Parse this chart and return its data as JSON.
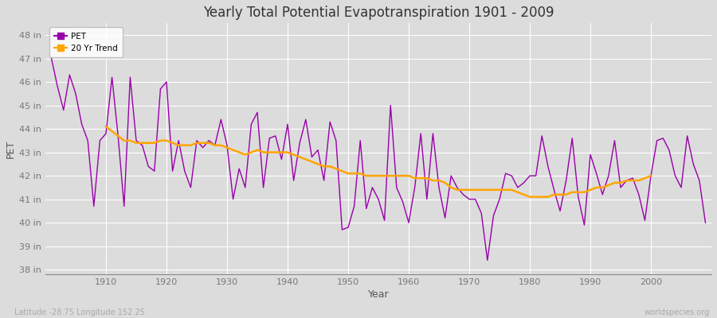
{
  "title": "Yearly Total Potential Evapotranspiration 1901 - 2009",
  "xlabel": "Year",
  "ylabel": "PET",
  "pet_color": "#9900AA",
  "trend_color": "#FFA500",
  "fig_bg_color": "#DCDCDC",
  "plot_bg_color": "#DCDCDC",
  "grid_color": "#FFFFFF",
  "ylim": [
    37.8,
    48.5
  ],
  "yticks": [
    38,
    39,
    40,
    41,
    42,
    43,
    44,
    45,
    46,
    47,
    48
  ],
  "ytick_labels": [
    "38 in",
    "39 in",
    "40 in",
    "41 in",
    "42 in",
    "43 in",
    "44 in",
    "45 in",
    "46 in",
    "47 in",
    "48 in"
  ],
  "xticks": [
    1910,
    1920,
    1930,
    1940,
    1950,
    1960,
    1970,
    1980,
    1990,
    2000
  ],
  "xlim": [
    1900,
    2010
  ],
  "footnote_left": "Latitude -28.75 Longitude 152.25",
  "footnote_right": "worldspecies.org",
  "legend_labels": [
    "PET",
    "20 Yr Trend"
  ],
  "years": [
    1901,
    1902,
    1903,
    1904,
    1905,
    1906,
    1907,
    1908,
    1909,
    1910,
    1911,
    1912,
    1913,
    1914,
    1915,
    1916,
    1917,
    1918,
    1919,
    1920,
    1921,
    1922,
    1923,
    1924,
    1925,
    1926,
    1927,
    1928,
    1929,
    1930,
    1931,
    1932,
    1933,
    1934,
    1935,
    1936,
    1937,
    1938,
    1939,
    1940,
    1941,
    1942,
    1943,
    1944,
    1945,
    1946,
    1947,
    1948,
    1949,
    1950,
    1951,
    1952,
    1953,
    1954,
    1955,
    1956,
    1957,
    1958,
    1959,
    1960,
    1961,
    1962,
    1963,
    1964,
    1965,
    1966,
    1967,
    1968,
    1969,
    1970,
    1971,
    1972,
    1973,
    1974,
    1975,
    1976,
    1977,
    1978,
    1979,
    1980,
    1981,
    1982,
    1983,
    1984,
    1985,
    1986,
    1987,
    1988,
    1989,
    1990,
    1991,
    1992,
    1993,
    1994,
    1995,
    1996,
    1997,
    1998,
    1999,
    2000,
    2001,
    2002,
    2003,
    2004,
    2005,
    2006,
    2007,
    2008,
    2009
  ],
  "pet_values": [
    47.0,
    45.8,
    44.8,
    46.3,
    45.5,
    44.2,
    43.5,
    40.7,
    43.5,
    43.8,
    46.2,
    43.7,
    40.7,
    46.2,
    43.5,
    43.3,
    42.4,
    42.2,
    45.7,
    46.0,
    42.2,
    43.5,
    42.2,
    41.5,
    43.5,
    43.2,
    43.5,
    43.3,
    44.4,
    43.3,
    41.0,
    42.3,
    41.5,
    44.2,
    44.7,
    41.5,
    43.6,
    43.7,
    42.7,
    44.2,
    41.8,
    43.4,
    44.4,
    42.8,
    43.1,
    41.8,
    44.3,
    43.5,
    39.7,
    39.8,
    40.7,
    43.5,
    40.6,
    41.5,
    41.0,
    40.1,
    45.0,
    41.5,
    40.9,
    40.0,
    41.5,
    43.8,
    41.0,
    43.8,
    41.5,
    40.2,
    42.0,
    41.5,
    41.2,
    41.0,
    41.0,
    40.4,
    38.4,
    40.3,
    41.0,
    42.1,
    42.0,
    41.5,
    41.7,
    42.0,
    42.0,
    43.7,
    42.4,
    41.4,
    40.5,
    41.8,
    43.6,
    41.1,
    39.9,
    42.9,
    42.1,
    41.2,
    42.0,
    43.5,
    41.5,
    41.8,
    41.9,
    41.2,
    40.1,
    42.0,
    43.5,
    43.6,
    43.1,
    42.0,
    41.5,
    43.7,
    42.5,
    41.8,
    40.0
  ],
  "trend_values": [
    null,
    null,
    null,
    null,
    null,
    null,
    null,
    null,
    null,
    44.1,
    43.9,
    43.7,
    43.5,
    43.5,
    43.4,
    43.4,
    43.4,
    43.4,
    43.5,
    43.5,
    43.4,
    43.3,
    43.3,
    43.3,
    43.4,
    43.4,
    43.4,
    43.3,
    43.3,
    43.2,
    43.1,
    43.0,
    42.9,
    43.0,
    43.1,
    43.0,
    43.0,
    43.0,
    43.0,
    43.0,
    42.9,
    42.8,
    42.7,
    42.6,
    42.5,
    42.4,
    42.4,
    42.3,
    42.2,
    42.1,
    42.1,
    42.1,
    42.0,
    42.0,
    42.0,
    42.0,
    42.0,
    42.0,
    42.0,
    42.0,
    41.9,
    41.9,
    41.9,
    41.8,
    41.8,
    41.7,
    41.5,
    41.4,
    41.4,
    41.4,
    41.4,
    41.4,
    41.4,
    41.4,
    41.4,
    41.4,
    41.4,
    41.3,
    41.2,
    41.1,
    41.1,
    41.1,
    41.1,
    41.2,
    41.2,
    41.2,
    41.3,
    41.3,
    41.3,
    41.4,
    41.5,
    41.5,
    41.6,
    41.7,
    41.7,
    41.8,
    41.8,
    41.8,
    41.9,
    42.0,
    null,
    null,
    null,
    null,
    null,
    null,
    null,
    null,
    null
  ]
}
